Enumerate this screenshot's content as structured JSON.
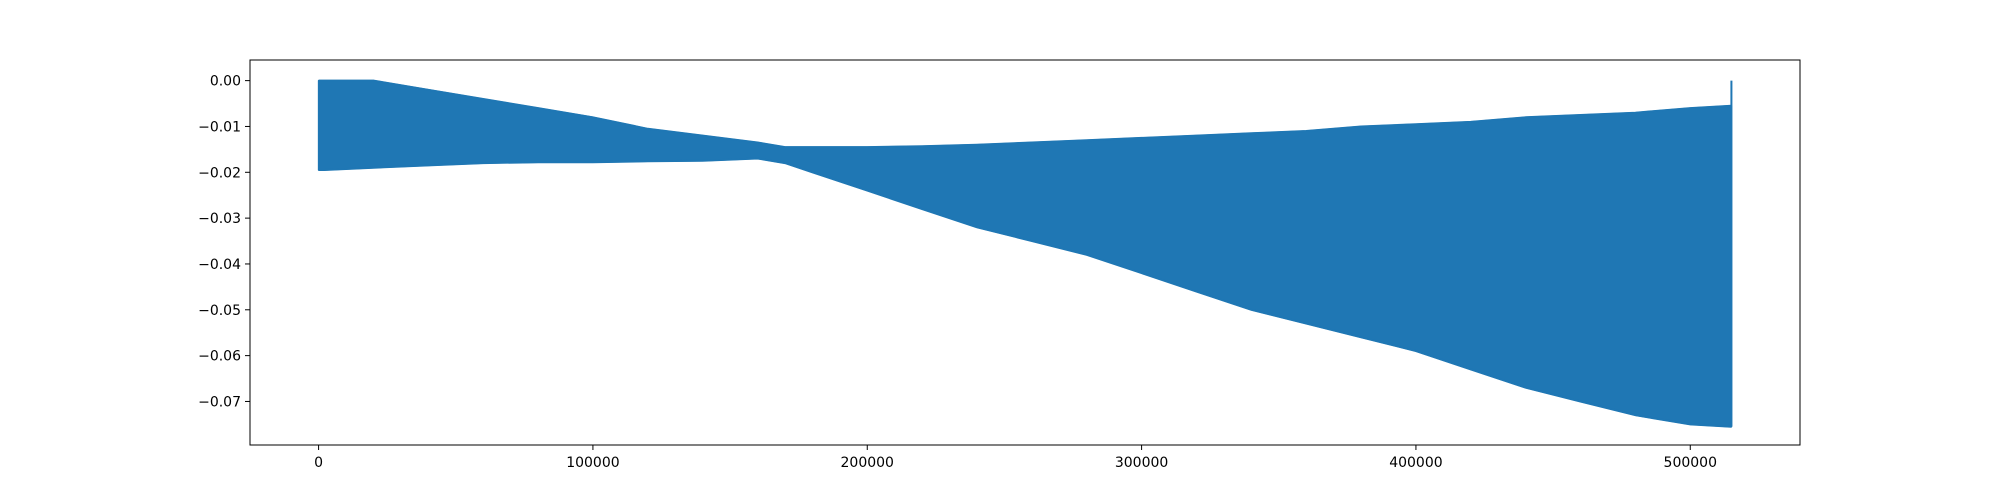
{
  "chart_data": {
    "type": "line",
    "title": "",
    "xlabel": "",
    "ylabel": "",
    "xlim": [
      -25000,
      540000
    ],
    "ylim": [
      -0.0795,
      0.0045
    ],
    "x_ticks": [
      0,
      100000,
      200000,
      300000,
      400000,
      500000
    ],
    "y_ticks": [
      0.0,
      -0.01,
      -0.02,
      -0.03,
      -0.04,
      -0.05,
      -0.06,
      -0.07
    ],
    "x_tick_labels": [
      "0",
      "100000",
      "200000",
      "300000",
      "400000",
      "500000"
    ],
    "y_tick_labels": [
      "0.00",
      "−0.01",
      "−0.02",
      "−0.03",
      "−0.04",
      "−0.05",
      "−0.06",
      "−0.07"
    ],
    "grid": false,
    "legend": "none",
    "series": [
      {
        "color": "#1f77b4",
        "x": [
          0,
          2000,
          20000,
          40000,
          60000,
          80000,
          100000,
          120000,
          140000,
          160000,
          170000,
          180000,
          200000,
          220000,
          240000,
          260000,
          280000,
          300000,
          320000,
          340000,
          360000,
          380000,
          400000,
          420000,
          440000,
          460000,
          480000,
          500000,
          515000
        ],
        "upper": [
          0.0,
          0.0,
          0.0,
          -0.002,
          -0.004,
          -0.006,
          -0.008,
          -0.0105,
          -0.012,
          -0.0135,
          -0.0145,
          -0.0145,
          -0.0145,
          -0.0143,
          -0.014,
          -0.0135,
          -0.013,
          -0.0125,
          -0.012,
          -0.0115,
          -0.011,
          -0.01,
          -0.0095,
          -0.009,
          -0.008,
          -0.0075,
          -0.007,
          -0.006,
          -0.0055
        ],
        "lower": [
          -0.0195,
          -0.0195,
          -0.019,
          -0.0185,
          -0.018,
          -0.0178,
          -0.0178,
          -0.0176,
          -0.0175,
          -0.017,
          -0.018,
          -0.02,
          -0.024,
          -0.028,
          -0.032,
          -0.035,
          -0.038,
          -0.042,
          -0.046,
          -0.05,
          -0.053,
          -0.056,
          -0.059,
          -0.063,
          -0.067,
          -0.07,
          -0.073,
          -0.075,
          -0.0755
        ]
      }
    ],
    "end_spike": {
      "x": 515000,
      "max": 0.0,
      "min": -0.0755
    }
  }
}
